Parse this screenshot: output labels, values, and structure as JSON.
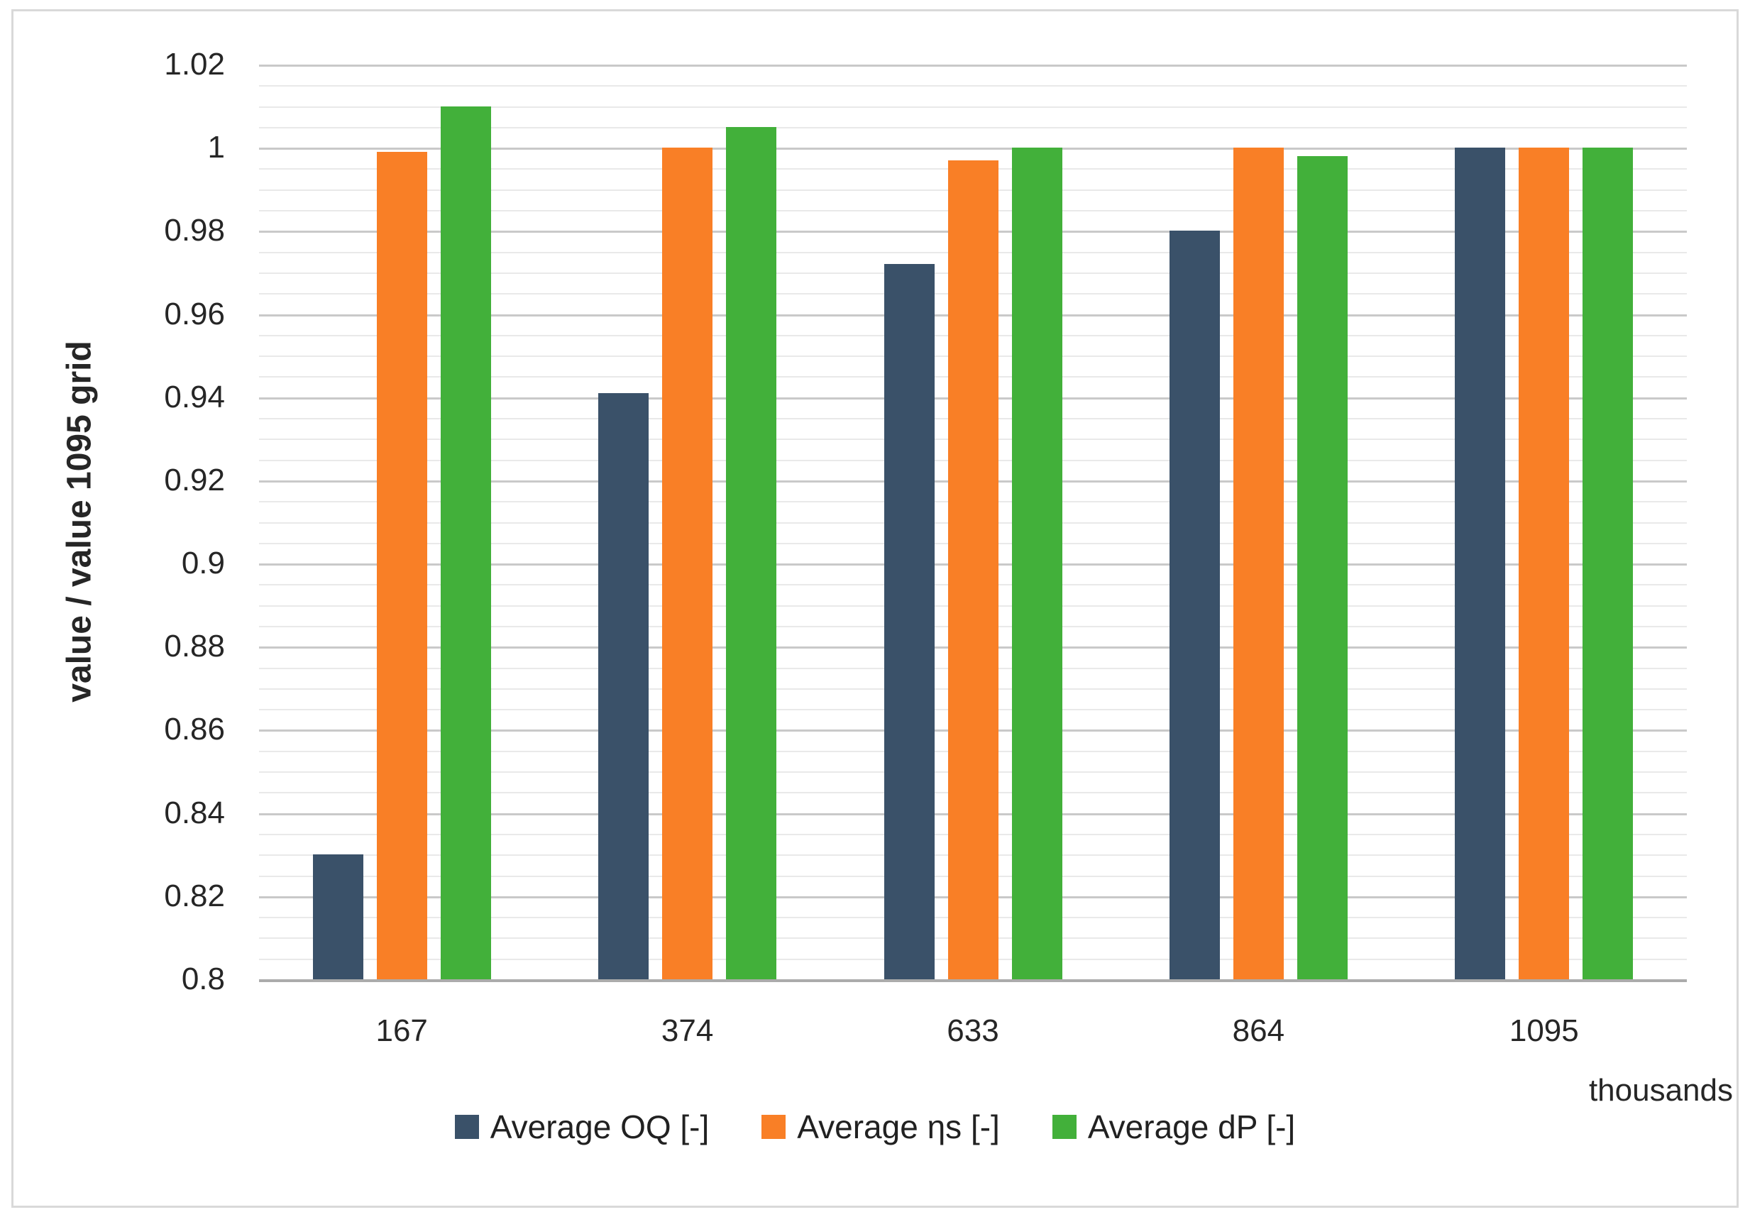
{
  "chart_data": {
    "type": "bar",
    "title": "",
    "categories": [
      "167",
      "374",
      "633",
      "864",
      "1095"
    ],
    "series": [
      {
        "name": "Average OQ [-]",
        "color": "#3A5169",
        "values": [
          0.83,
          0.941,
          0.972,
          0.98,
          1.0
        ]
      },
      {
        "name": "Average ηs [-]",
        "color": "#F97F26",
        "values": [
          0.999,
          1.0,
          0.997,
          1.0,
          1.0
        ]
      },
      {
        "name": "Average dP [-]",
        "color": "#42B03A",
        "values": [
          1.01,
          1.005,
          1.0,
          0.998,
          1.0
        ]
      }
    ],
    "xlabel": "thousands",
    "ylabel": "value / value 1095 grid",
    "ylim": [
      0.8,
      1.02
    ],
    "y_major_step": 0.02,
    "y_minor_step": 0.005,
    "y_tick_labels": [
      "0.8",
      "0.82",
      "0.84",
      "0.86",
      "0.88",
      "0.9",
      "0.92",
      "0.94",
      "0.96",
      "0.98",
      "1",
      "1.02"
    ],
    "grid": "major+minor horizontal",
    "legend_position": "bottom-center"
  },
  "colors": {
    "major_grid": "#C9C9C9",
    "minor_grid": "#E9E9E9",
    "axis_line": "#ABABAB",
    "text": "#262626",
    "frame_border": "#D9D9D9",
    "background": "#FFFFFF"
  }
}
